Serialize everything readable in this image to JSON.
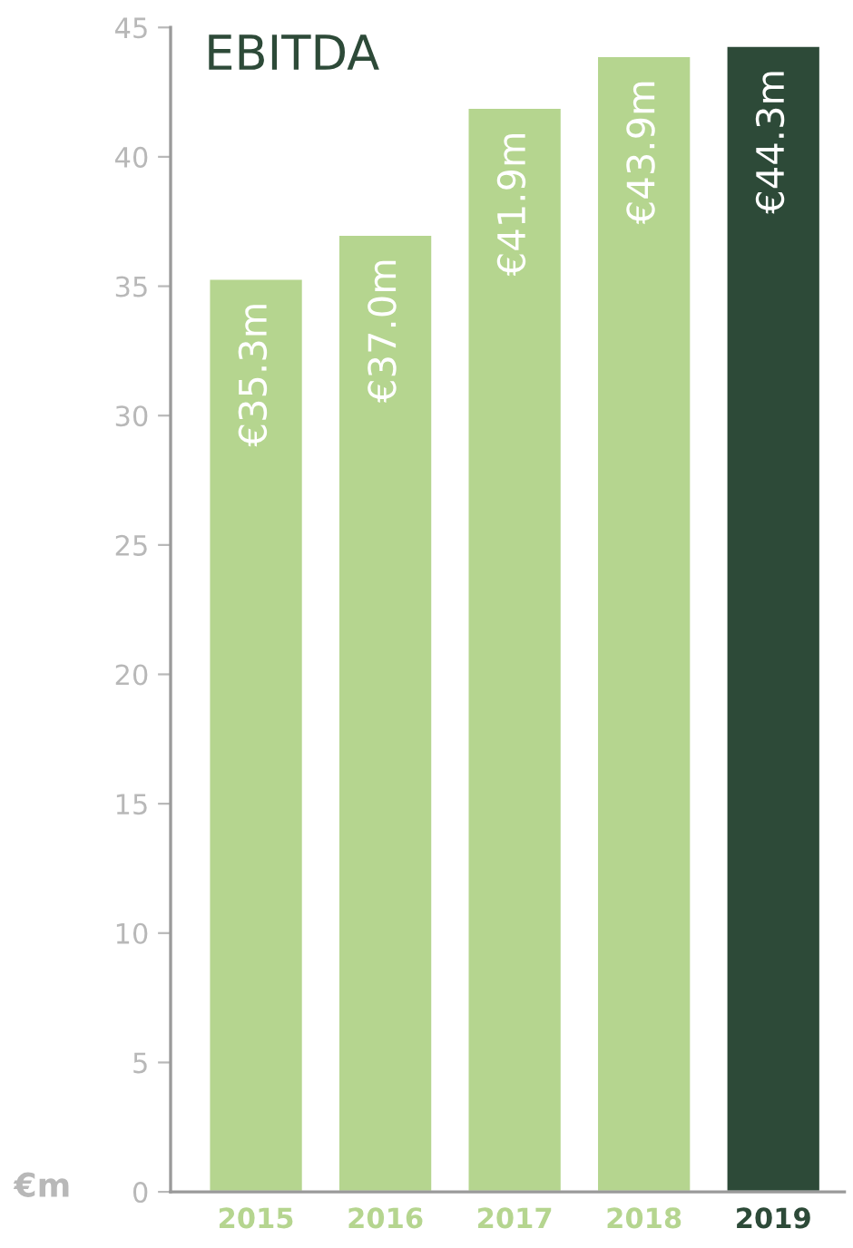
{
  "chart_data": {
    "type": "bar",
    "title": "EBITDA",
    "ylabel": "€m",
    "categories": [
      "2015",
      "2016",
      "2017",
      "2018",
      "2019"
    ],
    "values": [
      35.3,
      37.0,
      41.9,
      43.9,
      44.3
    ],
    "colors": [
      "#b5d58f",
      "#b5d58f",
      "#b5d58f",
      "#b5d58f",
      "#2d4a38"
    ],
    "value_labels": [
      "€35.3m",
      "€37.0m",
      "€41.9m",
      "€43.9m",
      "€44.3m"
    ],
    "ylim": [
      0,
      45
    ],
    "yticks": [
      0,
      5,
      10,
      15,
      20,
      25,
      30,
      35,
      40,
      45
    ],
    "grid": false,
    "legend": false
  }
}
